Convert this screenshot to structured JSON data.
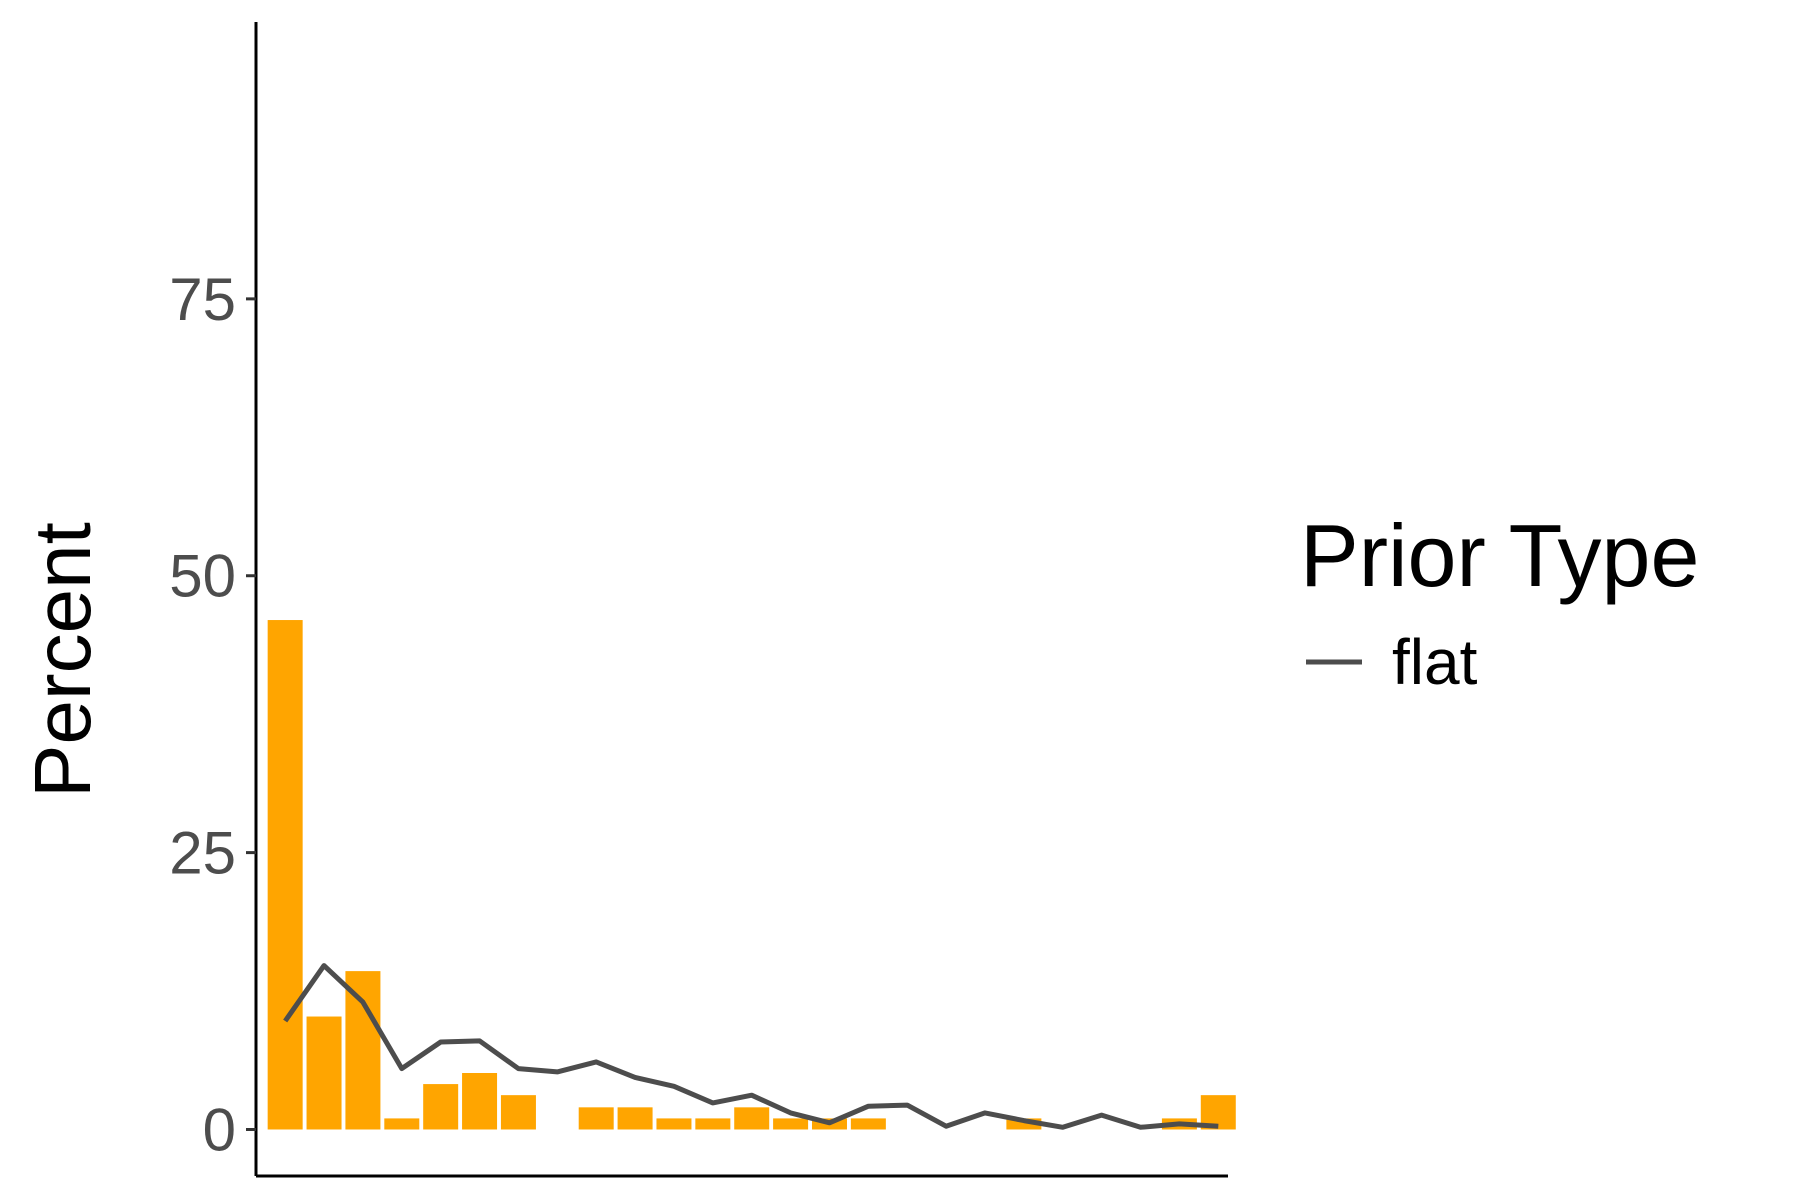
{
  "chart_data": {
    "type": "bar",
    "title": "",
    "xlabel": "",
    "ylabel": "Percent",
    "ylim": [
      -4.2,
      100
    ],
    "yticks": [
      0,
      25,
      50,
      75
    ],
    "xlim": [
      0.25,
      25.25
    ],
    "bars": {
      "color": "#FFA500",
      "x": [
        1,
        2,
        3,
        4,
        5,
        6,
        7,
        9,
        10,
        11,
        12,
        13,
        14,
        15,
        16,
        20,
        24,
        25
      ],
      "values": [
        46,
        10.2,
        14.3,
        1.0,
        4.1,
        5.1,
        3.1,
        2.0,
        2.0,
        1.0,
        1.0,
        2.0,
        1.0,
        1.0,
        1.0,
        1.0,
        1.0,
        3.1
      ]
    },
    "series": [
      {
        "name": "flat",
        "color": "#4d4d4d",
        "x": [
          1,
          2,
          3,
          4,
          5,
          6,
          7,
          8,
          9,
          10,
          11,
          12,
          13,
          14,
          15,
          16,
          17,
          18,
          19,
          20,
          21,
          22,
          23,
          24,
          25
        ],
        "values": [
          9.8,
          14.8,
          11.5,
          5.5,
          7.9,
          8.0,
          5.5,
          5.2,
          6.1,
          4.7,
          3.9,
          2.4,
          3.1,
          1.5,
          0.6,
          2.1,
          2.2,
          0.3,
          1.5,
          0.8,
          0.2,
          1.3,
          0.2,
          0.5,
          0.3
        ]
      }
    ],
    "legend": {
      "title": "Prior Type",
      "placement": "right",
      "entries": [
        "flat"
      ]
    }
  }
}
